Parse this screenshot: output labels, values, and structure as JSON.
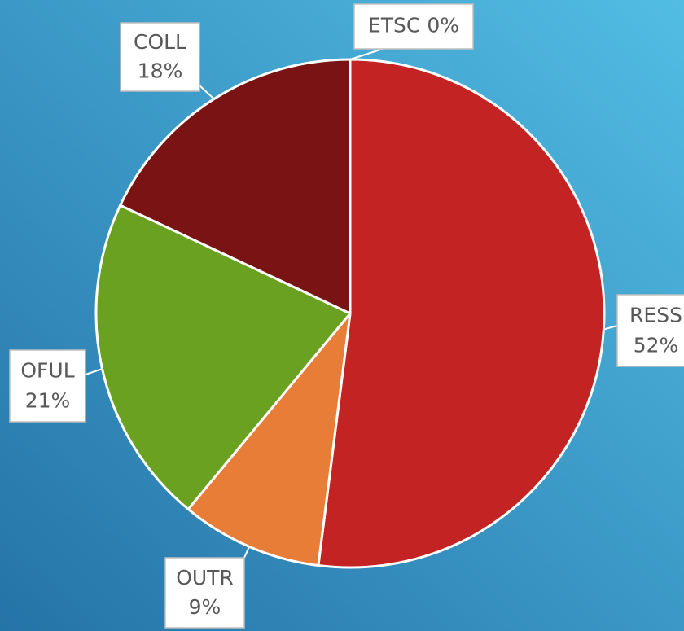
{
  "chart_data": {
    "type": "pie",
    "categories": [
      "RESS",
      "OUTR",
      "OFUL",
      "COLL",
      "ETSC"
    ],
    "values": [
      52,
      9,
      21,
      18,
      0
    ],
    "value_labels": [
      "52%",
      "9%",
      "21%",
      "18%",
      "0%"
    ],
    "colors": [
      "#c42323",
      "#e87d38",
      "#6aa121",
      "#7a1414",
      "#9e9e9e"
    ]
  }
}
